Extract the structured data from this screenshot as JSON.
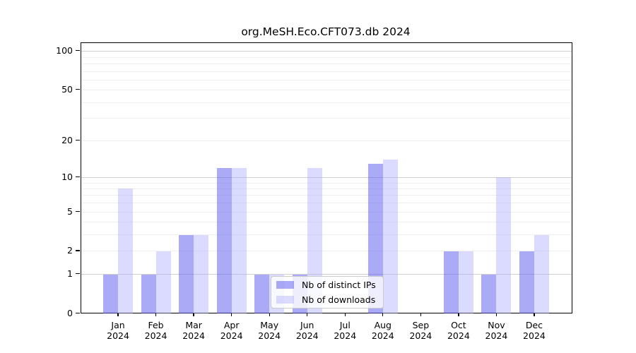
{
  "figure": {
    "background": "#ffffff"
  },
  "chart_data": {
    "type": "bar",
    "title": "org.MeSH.Eco.CFT073.db 2024",
    "x_categories": [
      "Jan",
      "Feb",
      "Mar",
      "Apr",
      "May",
      "Jun",
      "Jul",
      "Aug",
      "Sep",
      "Oct",
      "Nov",
      "Dec"
    ],
    "x_sub_label": "2024",
    "series": [
      {
        "name": "Nb of distinct IPs",
        "color": "#5555ee",
        "alpha": 0.5,
        "values": [
          1,
          1,
          3,
          12,
          1,
          1,
          0,
          13,
          0,
          2,
          1,
          2
        ]
      },
      {
        "name": "Nb of downloads",
        "color": "#aaaaff",
        "alpha": 0.42,
        "values": [
          8,
          2,
          3,
          12,
          1,
          12,
          0,
          14,
          0,
          2,
          10,
          3
        ]
      }
    ],
    "y_axis": {
      "scale": "log1p",
      "ylim": [
        0,
        100
      ],
      "tick_values": [
        0,
        1,
        2,
        5,
        10,
        20,
        50,
        100
      ],
      "tick_labels": [
        "0",
        "1",
        "2",
        "5",
        "10",
        "20",
        "50",
        "100"
      ],
      "major_grid_values": [
        1,
        10,
        100
      ],
      "minor_grid_values": [
        2,
        3,
        4,
        5,
        6,
        7,
        8,
        9,
        20,
        30,
        40,
        50,
        60,
        70,
        80,
        90
      ]
    },
    "grid": true,
    "legend": {
      "position": "lower-center",
      "entries": [
        "Nb of distinct IPs",
        "Nb of downloads"
      ]
    },
    "colors": {
      "grid_major": "#cfcfcf",
      "grid_minor": "#efefef",
      "axis": "#000000",
      "bar_distinct_ips_rendered": "#aaaaf6",
      "bar_downloads_rendered": "#dcdcfc"
    }
  }
}
